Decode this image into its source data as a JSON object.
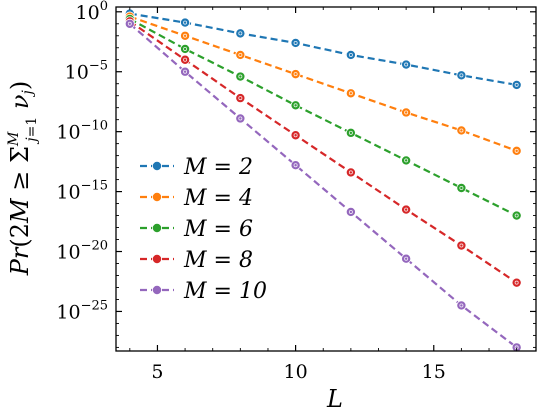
{
  "chart_data": {
    "type": "line",
    "title": "",
    "xlabel": "L",
    "ylabel": "Pr(2M ≥ Σ_{j=1}^{M} ν_j)",
    "y_scale": "log",
    "xlim": [
      3.5,
      18.7
    ],
    "ylim_exp": [
      -28.3,
      0.4
    ],
    "x_ticks": [
      5,
      10,
      15
    ],
    "y_ticks": [
      {
        "exp": 0,
        "base": "10",
        "sup": "0"
      },
      {
        "exp": -5,
        "base": "10",
        "sup": "−5"
      },
      {
        "exp": -10,
        "base": "10",
        "sup": "−10"
      },
      {
        "exp": -15,
        "base": "10",
        "sup": "−15"
      },
      {
        "exp": -20,
        "base": "10",
        "sup": "−20"
      },
      {
        "exp": -25,
        "base": "10",
        "sup": "−25"
      }
    ],
    "legend_position": "lower-left",
    "x": [
      4,
      6,
      8,
      10,
      12,
      14,
      16,
      18
    ],
    "series": [
      {
        "name": "M = 2",
        "color": "#1f77b4",
        "log10_values": [
          -0.15,
          -0.9,
          -1.8,
          -2.6,
          -3.6,
          -4.4,
          -5.3,
          -6.1
        ]
      },
      {
        "name": "M = 4",
        "color": "#ff7f0e",
        "log10_values": [
          -0.4,
          -2.0,
          -3.6,
          -5.2,
          -6.8,
          -8.4,
          -9.9,
          -11.6
        ]
      },
      {
        "name": "M = 6",
        "color": "#2ca02c",
        "log10_values": [
          -0.6,
          -3.1,
          -5.4,
          -7.8,
          -10.1,
          -12.4,
          -14.7,
          -17.0
        ]
      },
      {
        "name": "M = 8",
        "color": "#d62728",
        "log10_values": [
          -0.8,
          -4.0,
          -7.2,
          -10.3,
          -13.4,
          -16.5,
          -19.5,
          -22.6
        ]
      },
      {
        "name": "M = 10",
        "color": "#9467bd",
        "log10_values": [
          -1.0,
          -5.0,
          -8.9,
          -12.8,
          -16.7,
          -20.6,
          -24.5,
          -28.0
        ]
      }
    ]
  }
}
